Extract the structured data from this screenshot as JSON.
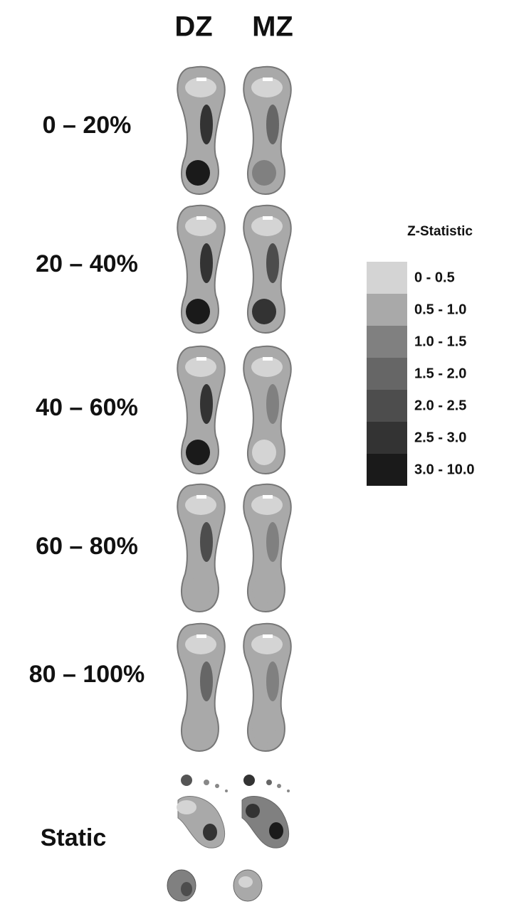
{
  "columns": [
    "DZ",
    "MZ"
  ],
  "rows": [
    "0 – 20%",
    "20 – 40%",
    "40 – 60%",
    "60 – 80%",
    "80 – 100%",
    "Static"
  ],
  "legend": {
    "title": "Z-Statistic",
    "items": [
      {
        "label": "0 - 0.5",
        "color": "#d4d4d4"
      },
      {
        "label": "0.5 - 1.0",
        "color": "#a9a9a9"
      },
      {
        "label": "1.0 - 1.5",
        "color": "#808080"
      },
      {
        "label": "1.5 - 2.0",
        "color": "#666666"
      },
      {
        "label": "2.0 - 2.5",
        "color": "#4d4d4d"
      },
      {
        "label": "2.5 - 3.0",
        "color": "#333333"
      },
      {
        "label": "3.0 - 10.0",
        "color": "#1a1a1a"
      }
    ]
  }
}
